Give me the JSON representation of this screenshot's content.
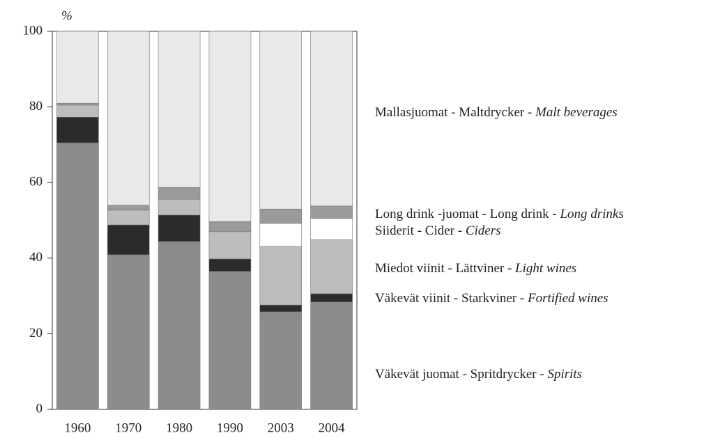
{
  "chart_data": {
    "type": "stacked_bar",
    "y_label": "%",
    "categories": [
      "1960",
      "1970",
      "1980",
      "1990",
      "2003",
      "2004"
    ],
    "series": [
      {
        "name": "Väkevät juomat - Spritdrycker - Spirits",
        "color": "#8c8c8c",
        "values": [
          70.5,
          40.9,
          44.4,
          36.5,
          25.8,
          28.4
        ]
      },
      {
        "name": "Väkevät viinit - Starkviner - Fortified wines",
        "color": "#2b2b2b",
        "values": [
          6.8,
          7.9,
          7.0,
          3.3,
          1.8,
          2.2
        ]
      },
      {
        "name": "Miedot viinit - Lättviner - Light wines",
        "color": "#bdbdbd",
        "values": [
          3.2,
          3.9,
          4.2,
          7.2,
          15.5,
          14.3
        ]
      },
      {
        "name": "Siiderit - Cider - Ciders",
        "color": "#ffffff",
        "values": [
          0,
          0,
          0,
          0,
          6.1,
          5.6
        ]
      },
      {
        "name": "Long drink -juomat - Long drink - Long drinks",
        "color": "#9a9a9a",
        "values": [
          0.5,
          1.3,
          3.1,
          2.7,
          3.8,
          3.3
        ]
      },
      {
        "name": "Mallasjuomat - Maltdrycker - Malt beverages",
        "color": "#e9e9e9",
        "values": [
          19.0,
          46.0,
          41.3,
          50.3,
          47.0,
          46.2
        ]
      }
    ],
    "ylim": [
      0,
      100
    ],
    "yticks": [
      0,
      20,
      40,
      60,
      80,
      100
    ],
    "grid": false
  }
}
